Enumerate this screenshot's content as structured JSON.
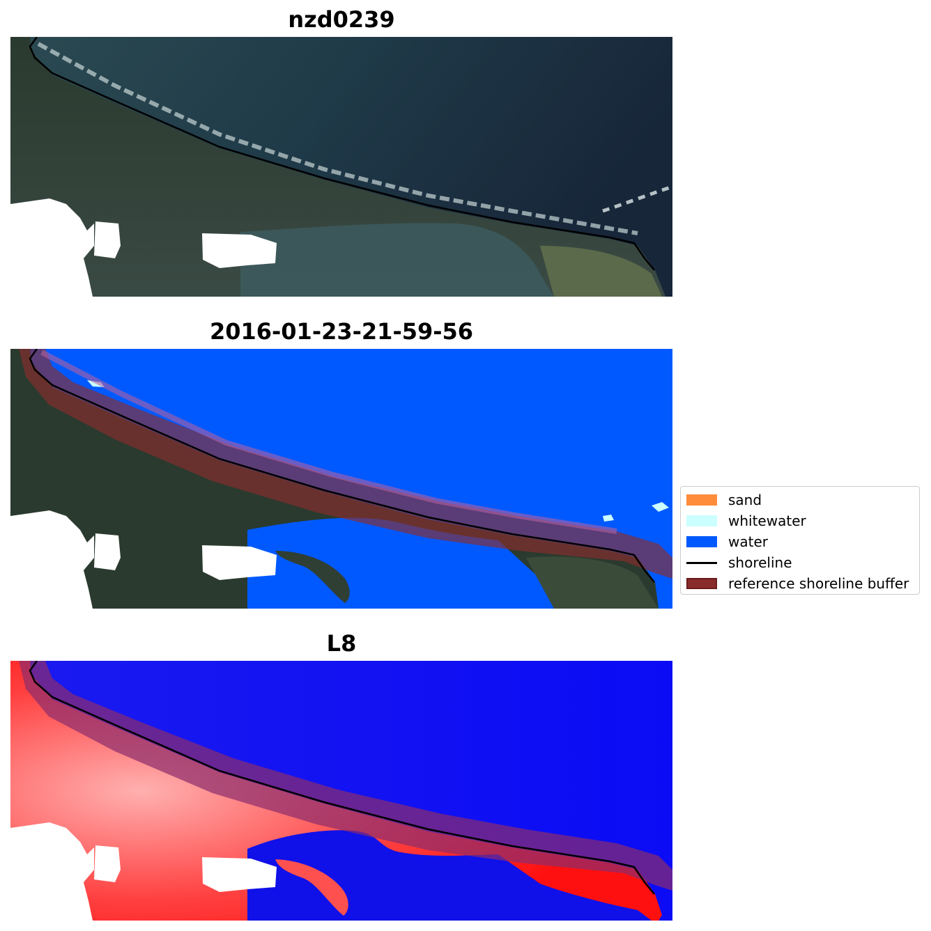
{
  "panels": [
    {
      "title": "nzd0239",
      "content": "RGB satellite image"
    },
    {
      "title": "2016-01-23-21-59-56",
      "content": "classified image overlay"
    },
    {
      "title": "L8",
      "content": "MNDWI index image"
    }
  ],
  "legend": {
    "items": [
      {
        "label": "sand",
        "color": "#ff8c3a",
        "kind": "patch"
      },
      {
        "label": "whitewater",
        "color": "#ccffff",
        "kind": "patch"
      },
      {
        "label": "water",
        "color": "#0059ff",
        "kind": "patch"
      },
      {
        "label": "shoreline",
        "color": "#000000",
        "kind": "line"
      },
      {
        "label": "reference shoreline buffer",
        "color": "#8b2c2c",
        "kind": "patch"
      }
    ]
  }
}
